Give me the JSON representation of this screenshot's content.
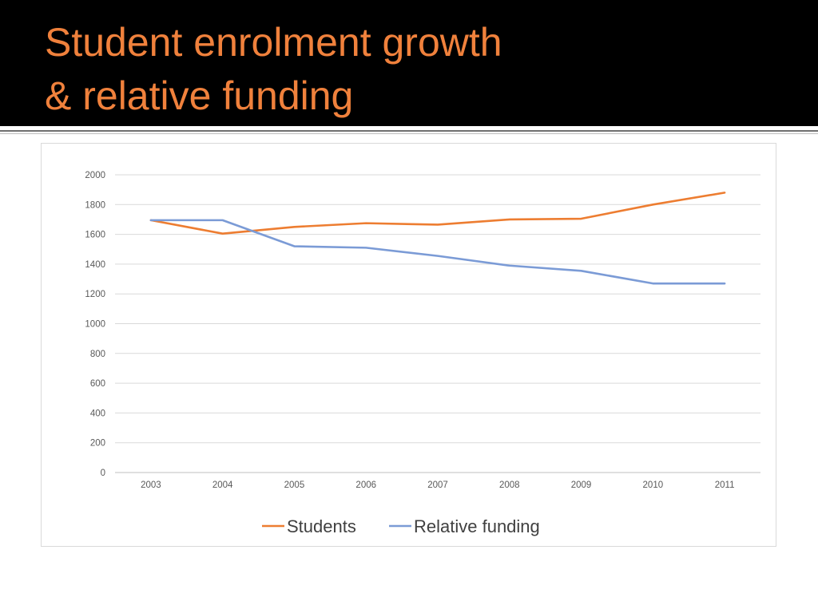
{
  "slide": {
    "title_line1": "Student enrolment growth",
    "title_line2": "& relative funding",
    "title_color": "#f0813c"
  },
  "chart_data": {
    "type": "line",
    "title": "",
    "xlabel": "",
    "ylabel": "",
    "categories": [
      "2003",
      "2004",
      "2005",
      "2006",
      "2007",
      "2008",
      "2009",
      "2010",
      "2011"
    ],
    "series": [
      {
        "name": "Students",
        "color": "#ed7d31",
        "values": [
          1695,
          1605,
          1650,
          1675,
          1665,
          1700,
          1705,
          1800,
          1880
        ]
      },
      {
        "name": "Relative funding",
        "color": "#7b9bd6",
        "values": [
          1695,
          1695,
          1520,
          1510,
          1455,
          1390,
          1355,
          1270,
          1270
        ]
      }
    ],
    "ylim": [
      0,
      2000
    ],
    "yticks": [
      0,
      200,
      400,
      600,
      800,
      1000,
      1200,
      1400,
      1600,
      1800,
      2000
    ],
    "grid": true,
    "legend_position": "bottom"
  }
}
